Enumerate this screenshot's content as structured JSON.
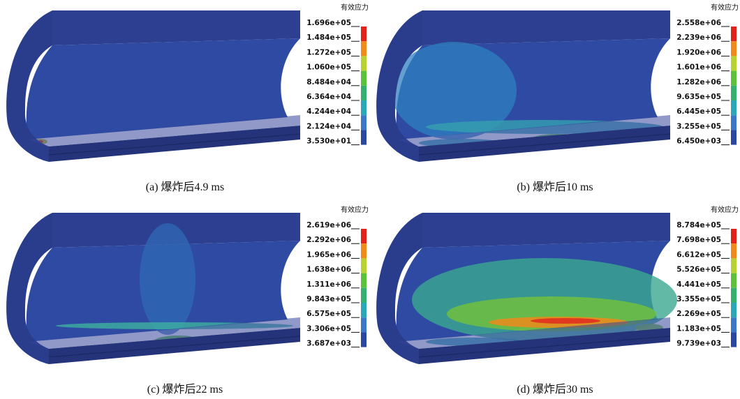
{
  "panels": [
    {
      "caption": "(a) 爆炸后4.9 ms",
      "legend_title": "有效应力",
      "legend_labels": [
        "1.696e+05",
        "1.484e+05",
        "1.272e+05",
        "1.060e+05",
        "8.484e+04",
        "6.364e+04",
        "4.244e+04",
        "2.124e+04",
        "3.530e+01"
      ]
    },
    {
      "caption": "(b) 爆炸后10 ms",
      "legend_title": "有效应力",
      "legend_labels": [
        "2.558e+06",
        "2.239e+06",
        "1.920e+06",
        "1.601e+06",
        "1.282e+06",
        "9.635e+05",
        "6.445e+05",
        "3.255e+05",
        "6.450e+03"
      ]
    },
    {
      "caption": "(c) 爆炸后22 ms",
      "legend_title": "有效应力",
      "legend_labels": [
        "2.619e+06",
        "2.292e+06",
        "1.965e+06",
        "1.638e+06",
        "1.311e+06",
        "9.843e+05",
        "6.575e+05",
        "3.306e+05",
        "3.687e+03"
      ]
    },
    {
      "caption": "(d) 爆炸后30 ms",
      "legend_title": "有效应力",
      "legend_labels": [
        "8.784e+05",
        "7.698e+05",
        "6.612e+05",
        "5.526e+05",
        "4.441e+05",
        "3.355e+05",
        "2.269e+05",
        "1.183e+05",
        "9.739e+03"
      ]
    }
  ]
}
